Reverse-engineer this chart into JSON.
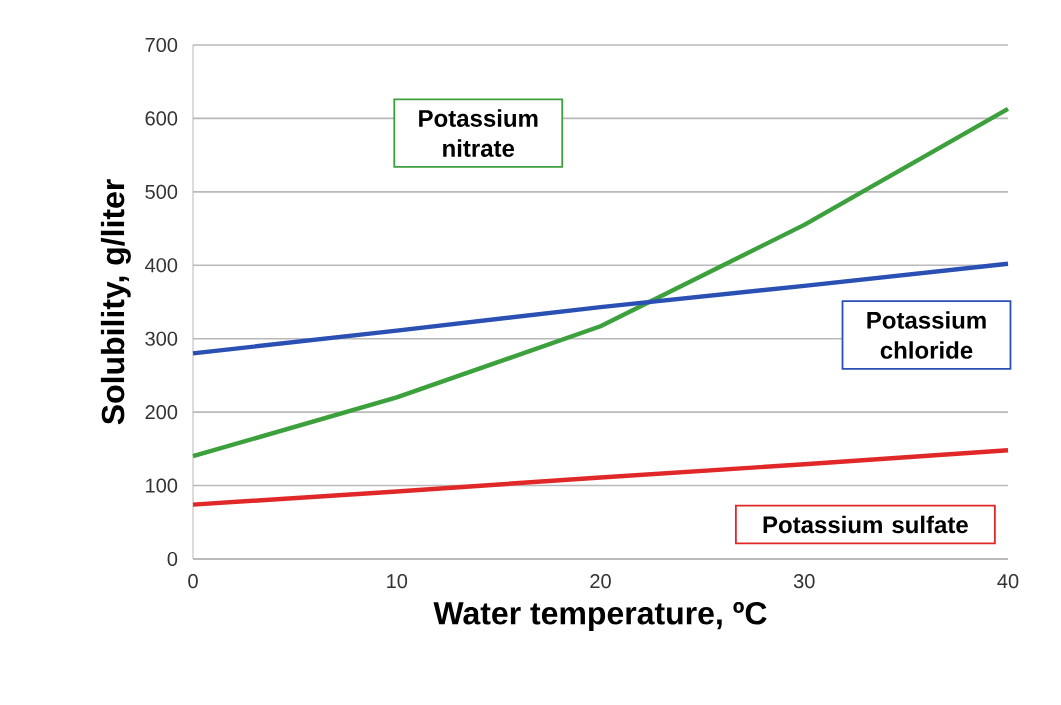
{
  "chart_data": {
    "type": "line",
    "xlabel": "Water temperature, ºC",
    "ylabel": "Solubility,  g/liter",
    "x": [
      0,
      10,
      20,
      30,
      40
    ],
    "series": [
      {
        "name": "Potassium nitrate",
        "color": "#3ca03c",
        "values": [
          140,
          220,
          317,
          455,
          613
        ]
      },
      {
        "name": "Potassium chloride",
        "color": "#2a50b4",
        "values": [
          280,
          311,
          343,
          372,
          402
        ]
      },
      {
        "name": "Potassium sulfate",
        "color": "#e02828",
        "values": [
          74,
          92,
          111,
          129,
          148
        ]
      }
    ],
    "xlim": [
      0,
      40
    ],
    "xticks": [
      0,
      10,
      20,
      30,
      40
    ],
    "ylim": [
      0,
      700
    ],
    "yticks": [
      0,
      100,
      200,
      300,
      400,
      500,
      600,
      700
    ],
    "grid": "y",
    "legend": false,
    "marker": "none",
    "line_style": "solid"
  }
}
